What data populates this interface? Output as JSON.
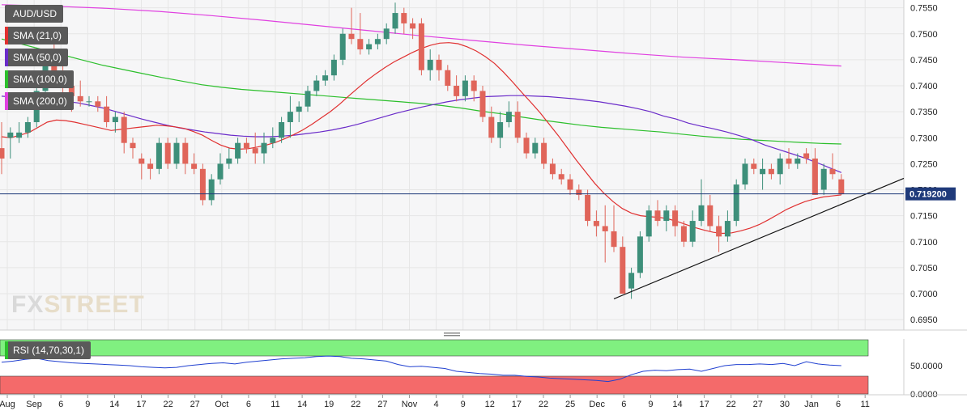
{
  "symbol": "AUD/USD",
  "indicators": [
    {
      "label": "SMA (21,0)",
      "color": "#e03030"
    },
    {
      "label": "SMA (50,0)",
      "color": "#6a2bc9"
    },
    {
      "label": "SMA (100,0)",
      "color": "#2cbf2c"
    },
    {
      "label": "SMA (200,0)",
      "color": "#e040e0"
    }
  ],
  "rsi": {
    "label": "RSI (14,70,30,1)",
    "tick_labels": [
      "50.0000",
      "0.0000"
    ],
    "overbought_color": "#80f080",
    "oversold_color": "#f46a6a",
    "line_color": "#2040d0"
  },
  "last_price_label": "0.719200",
  "watermark": {
    "fx": "FX",
    "street": "STREET"
  },
  "colors": {
    "up": "#3d8f7a",
    "down": "#e0655a",
    "grid": "#e6e6e6",
    "background": "#ffffff"
  },
  "chart_data": {
    "type": "candlestick",
    "ylim": [
      0.693,
      0.7565
    ],
    "yticks": [
      0.695,
      0.7,
      0.705,
      0.71,
      0.715,
      0.72,
      0.725,
      0.73,
      0.735,
      0.74,
      0.745,
      0.75,
      0.755
    ],
    "ytick_labels": [
      "0.6950",
      "0.7000",
      "0.7050",
      "0.7100",
      "0.7150",
      "0.7200",
      "0.7250",
      "0.7300",
      "0.7350",
      "0.7400",
      "0.7450",
      "0.7500",
      "0.7550"
    ],
    "xlabels": [
      "Aug",
      "Sep",
      "6",
      "9",
      "14",
      "17",
      "22",
      "27",
      "Oct",
      "6",
      "11",
      "14",
      "19",
      "22",
      "27",
      "Nov",
      "4",
      "9",
      "12",
      "17",
      "22",
      "25",
      "Dec",
      "6",
      "9",
      "14",
      "17",
      "22",
      "27",
      "30",
      "Jan",
      "6",
      "11"
    ],
    "candles": [
      [
        0.728,
        0.733,
        0.723,
        0.726
      ],
      [
        0.73,
        0.732,
        0.726,
        0.731
      ],
      [
        0.73,
        0.733,
        0.729,
        0.731
      ],
      [
        0.731,
        0.734,
        0.73,
        0.733
      ],
      [
        0.733,
        0.74,
        0.732,
        0.739
      ],
      [
        0.739,
        0.746,
        0.737,
        0.744
      ],
      [
        0.744,
        0.748,
        0.74,
        0.742
      ],
      [
        0.742,
        0.744,
        0.738,
        0.74
      ],
      [
        0.74,
        0.742,
        0.735,
        0.738
      ],
      [
        0.738,
        0.741,
        0.736,
        0.737
      ],
      [
        0.737,
        0.738,
        0.736,
        0.737
      ],
      [
        0.737,
        0.738,
        0.735,
        0.736
      ],
      [
        0.736,
        0.738,
        0.732,
        0.733
      ],
      [
        0.733,
        0.735,
        0.731,
        0.734
      ],
      [
        0.734,
        0.735,
        0.727,
        0.729
      ],
      [
        0.729,
        0.73,
        0.726,
        0.728
      ],
      [
        0.726,
        0.727,
        0.722,
        0.725
      ],
      [
        0.725,
        0.726,
        0.722,
        0.724
      ],
      [
        0.724,
        0.73,
        0.723,
        0.729
      ],
      [
        0.729,
        0.73,
        0.724,
        0.725
      ],
      [
        0.725,
        0.73,
        0.724,
        0.729
      ],
      [
        0.729,
        0.73,
        0.723,
        0.725
      ],
      [
        0.725,
        0.727,
        0.723,
        0.724
      ],
      [
        0.724,
        0.725,
        0.717,
        0.718
      ],
      [
        0.718,
        0.723,
        0.717,
        0.722
      ],
      [
        0.722,
        0.727,
        0.721,
        0.725
      ],
      [
        0.725,
        0.728,
        0.724,
        0.726
      ],
      [
        0.726,
        0.73,
        0.725,
        0.729
      ],
      [
        0.729,
        0.73,
        0.727,
        0.728
      ],
      [
        0.728,
        0.731,
        0.725,
        0.727
      ],
      [
        0.727,
        0.731,
        0.725,
        0.729
      ],
      [
        0.729,
        0.732,
        0.728,
        0.73
      ],
      [
        0.73,
        0.734,
        0.729,
        0.733
      ],
      [
        0.733,
        0.738,
        0.73,
        0.735
      ],
      [
        0.735,
        0.737,
        0.733,
        0.736
      ],
      [
        0.736,
        0.74,
        0.735,
        0.739
      ],
      [
        0.739,
        0.742,
        0.738,
        0.741
      ],
      [
        0.741,
        0.743,
        0.74,
        0.742
      ],
      [
        0.742,
        0.746,
        0.741,
        0.745
      ],
      [
        0.745,
        0.751,
        0.744,
        0.75
      ],
      [
        0.75,
        0.755,
        0.748,
        0.749
      ],
      [
        0.749,
        0.754,
        0.746,
        0.747
      ],
      [
        0.747,
        0.749,
        0.746,
        0.748
      ],
      [
        0.748,
        0.75,
        0.747,
        0.749
      ],
      [
        0.749,
        0.752,
        0.748,
        0.751
      ],
      [
        0.751,
        0.756,
        0.75,
        0.754
      ],
      [
        0.754,
        0.755,
        0.75,
        0.752
      ],
      [
        0.752,
        0.753,
        0.749,
        0.751
      ],
      [
        0.752,
        0.753,
        0.742,
        0.743
      ],
      [
        0.743,
        0.747,
        0.741,
        0.745
      ],
      [
        0.745,
        0.746,
        0.741,
        0.743
      ],
      [
        0.743,
        0.744,
        0.739,
        0.74
      ],
      [
        0.74,
        0.742,
        0.737,
        0.738
      ],
      [
        0.738,
        0.742,
        0.737,
        0.741
      ],
      [
        0.741,
        0.742,
        0.737,
        0.739
      ],
      [
        0.739,
        0.74,
        0.733,
        0.734
      ],
      [
        0.734,
        0.736,
        0.729,
        0.73
      ],
      [
        0.73,
        0.735,
        0.728,
        0.733
      ],
      [
        0.733,
        0.737,
        0.732,
        0.735
      ],
      [
        0.735,
        0.737,
        0.729,
        0.73
      ],
      [
        0.73,
        0.731,
        0.726,
        0.727
      ],
      [
        0.727,
        0.73,
        0.726,
        0.729
      ],
      [
        0.729,
        0.73,
        0.724,
        0.725
      ],
      [
        0.725,
        0.726,
        0.722,
        0.723
      ],
      [
        0.723,
        0.724,
        0.721,
        0.722
      ],
      [
        0.722,
        0.723,
        0.719,
        0.72
      ],
      [
        0.72,
        0.721,
        0.718,
        0.719
      ],
      [
        0.719,
        0.72,
        0.713,
        0.714
      ],
      [
        0.714,
        0.716,
        0.711,
        0.713
      ],
      [
        0.713,
        0.717,
        0.706,
        0.712
      ],
      [
        0.712,
        0.717,
        0.708,
        0.709
      ],
      [
        0.709,
        0.711,
        0.7,
        0.7
      ],
      [
        0.701,
        0.705,
        0.699,
        0.704
      ],
      [
        0.704,
        0.712,
        0.703,
        0.711
      ],
      [
        0.711,
        0.717,
        0.71,
        0.716
      ],
      [
        0.716,
        0.718,
        0.713,
        0.714
      ],
      [
        0.714,
        0.717,
        0.712,
        0.716
      ],
      [
        0.716,
        0.717,
        0.711,
        0.713
      ],
      [
        0.713,
        0.714,
        0.709,
        0.71
      ],
      [
        0.71,
        0.716,
        0.709,
        0.714
      ],
      [
        0.714,
        0.722,
        0.713,
        0.717
      ],
      [
        0.717,
        0.719,
        0.712,
        0.713
      ],
      [
        0.713,
        0.715,
        0.708,
        0.711
      ],
      [
        0.711,
        0.716,
        0.71,
        0.714
      ],
      [
        0.714,
        0.722,
        0.713,
        0.721
      ],
      [
        0.721,
        0.726,
        0.72,
        0.725
      ],
      [
        0.725,
        0.726,
        0.723,
        0.724
      ],
      [
        0.723,
        0.726,
        0.72,
        0.724
      ],
      [
        0.724,
        0.725,
        0.722,
        0.723
      ],
      [
        0.723,
        0.727,
        0.721,
        0.726
      ],
      [
        0.726,
        0.728,
        0.724,
        0.725
      ],
      [
        0.725,
        0.727,
        0.724,
        0.726
      ],
      [
        0.727,
        0.728,
        0.725,
        0.726
      ],
      [
        0.726,
        0.728,
        0.719,
        0.719
      ],
      [
        0.72,
        0.725,
        0.719,
        0.724
      ],
      [
        0.724,
        0.727,
        0.722,
        0.723
      ],
      [
        0.722,
        0.723,
        0.719,
        0.7192
      ]
    ],
    "sma21": [
      0.7302,
      0.73,
      0.7305,
      0.731,
      0.732,
      0.733,
      0.7334,
      0.7333,
      0.733,
      0.7326,
      0.7322,
      0.7318,
      0.7314,
      0.7316,
      0.7318,
      0.732,
      0.7322,
      0.7324,
      0.7323,
      0.7321,
      0.7318,
      0.7312,
      0.7305,
      0.7295,
      0.7286,
      0.728,
      0.7278,
      0.7279,
      0.7282,
      0.7286,
      0.7291,
      0.7298,
      0.7306,
      0.7315,
      0.7326,
      0.7338,
      0.735,
      0.7364,
      0.738,
      0.7395,
      0.741,
      0.7423,
      0.7435,
      0.7446,
      0.7455,
      0.7464,
      0.7472,
      0.7478,
      0.7482,
      0.7483,
      0.7481,
      0.7475,
      0.7467,
      0.7456,
      0.7443,
      0.7426,
      0.7407,
      0.7387,
      0.7368,
      0.7348,
      0.7326,
      0.7304,
      0.728,
      0.7256,
      0.7234,
      0.7212,
      0.7193,
      0.7177,
      0.7164,
      0.7155,
      0.715,
      0.7148,
      0.7147,
      0.7144,
      0.7139,
      0.7133,
      0.7127,
      0.7122,
      0.7118,
      0.7116,
      0.7117,
      0.7121,
      0.7126,
      0.7133,
      0.7142,
      0.7152,
      0.7162,
      0.717,
      0.7177,
      0.7182,
      0.7186,
      0.7188,
      0.719
    ],
    "sma50": [
      0.738,
      0.7378,
      0.7376,
      0.7374,
      0.7372,
      0.737,
      0.7367,
      0.7362,
      0.7357,
      0.735,
      0.7343,
      0.7336,
      0.733,
      0.7324,
      0.7319,
      0.7315,
      0.7311,
      0.7308,
      0.7305,
      0.7303,
      0.7302,
      0.7302,
      0.7303,
      0.7305,
      0.7308,
      0.7311,
      0.7315,
      0.732,
      0.7326,
      0.7333,
      0.734,
      0.7347,
      0.7353,
      0.7359,
      0.7364,
      0.7369,
      0.7373,
      0.7376,
      0.7379,
      0.738,
      0.7381,
      0.7381,
      0.738,
      0.7379,
      0.7377,
      0.7375,
      0.7372,
      0.7369,
      0.7365,
      0.7361,
      0.7356,
      0.735,
      0.7342,
      0.7336,
      0.7328,
      0.7322,
      0.7317,
      0.7311,
      0.7304,
      0.7296,
      0.7286,
      0.7278,
      0.727,
      0.7262,
      0.7253,
      0.7243,
      0.7233
    ],
    "sma100": [
      0.749,
      0.748,
      0.747,
      0.746,
      0.745,
      0.744,
      0.7432,
      0.7424,
      0.7416,
      0.7409,
      0.7402,
      0.7397,
      0.7393,
      0.739,
      0.7387,
      0.7384,
      0.7381,
      0.7378,
      0.7375,
      0.7372,
      0.7369,
      0.7366,
      0.7362,
      0.7357,
      0.7351,
      0.7346,
      0.734,
      0.7334,
      0.7329,
      0.7324,
      0.732,
      0.7317,
      0.7314,
      0.7311,
      0.7307,
      0.7303,
      0.73,
      0.7297,
      0.7295,
      0.7293,
      0.7291,
      0.7289,
      0.7288
    ],
    "sma200": [
      0.7556,
      0.7553,
      0.7549,
      0.7543,
      0.7535,
      0.7526,
      0.7516,
      0.7506,
      0.7496,
      0.7487,
      0.7478,
      0.747,
      0.7462,
      0.7455,
      0.745,
      0.7444,
      0.7438
    ],
    "rsi": [
      56,
      58,
      61,
      63,
      59,
      57,
      55,
      54,
      53,
      52,
      51,
      50,
      48,
      47,
      46,
      47,
      50,
      52,
      54,
      55,
      53,
      56,
      58,
      60,
      62,
      63,
      64,
      66,
      67,
      66,
      63,
      62,
      60,
      58,
      52,
      48,
      49,
      47,
      45,
      40,
      38,
      36,
      35,
      33,
      33,
      31,
      30,
      28,
      27,
      26,
      25,
      24,
      22,
      26,
      34,
      40,
      42,
      41,
      43,
      44,
      40,
      45,
      50,
      52,
      52,
      53,
      52,
      54,
      50,
      57,
      53,
      51,
      50
    ]
  }
}
